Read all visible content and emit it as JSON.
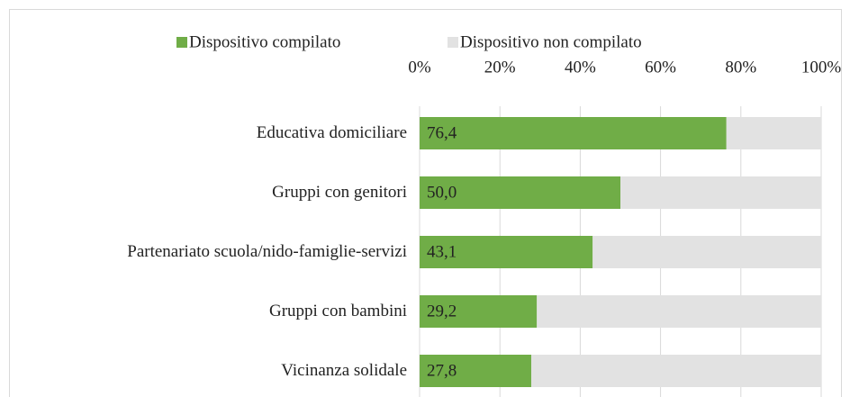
{
  "chart_data": {
    "type": "stacked_barh",
    "categories": [
      "Educativa domiciliare",
      "Gruppi con genitori",
      "Partenariato scuola/nido-famiglie-servizi",
      "Gruppi con bambini",
      "Vicinanza solidale"
    ],
    "series": [
      {
        "name": "Dispositivo compilato",
        "color": "#70ad47",
        "values": [
          76.4,
          50.0,
          43.1,
          29.2,
          27.8
        ],
        "value_labels": [
          "76,4",
          "50,0",
          "43,1",
          "29,2",
          "27,8"
        ]
      },
      {
        "name": "Dispositivo non compilato",
        "color": "#e2e2e2",
        "values": [
          23.6,
          50.0,
          56.9,
          70.8,
          72.2
        ]
      }
    ],
    "xlim": [
      0,
      100
    ],
    "xticks": [
      {
        "value": 0,
        "label": "0%"
      },
      {
        "value": 20,
        "label": "20%"
      },
      {
        "value": 40,
        "label": "40%"
      },
      {
        "value": 60,
        "label": "60%"
      },
      {
        "value": 80,
        "label": "80%"
      },
      {
        "value": 100,
        "label": "100%"
      }
    ],
    "grid": true,
    "legend": "top"
  }
}
